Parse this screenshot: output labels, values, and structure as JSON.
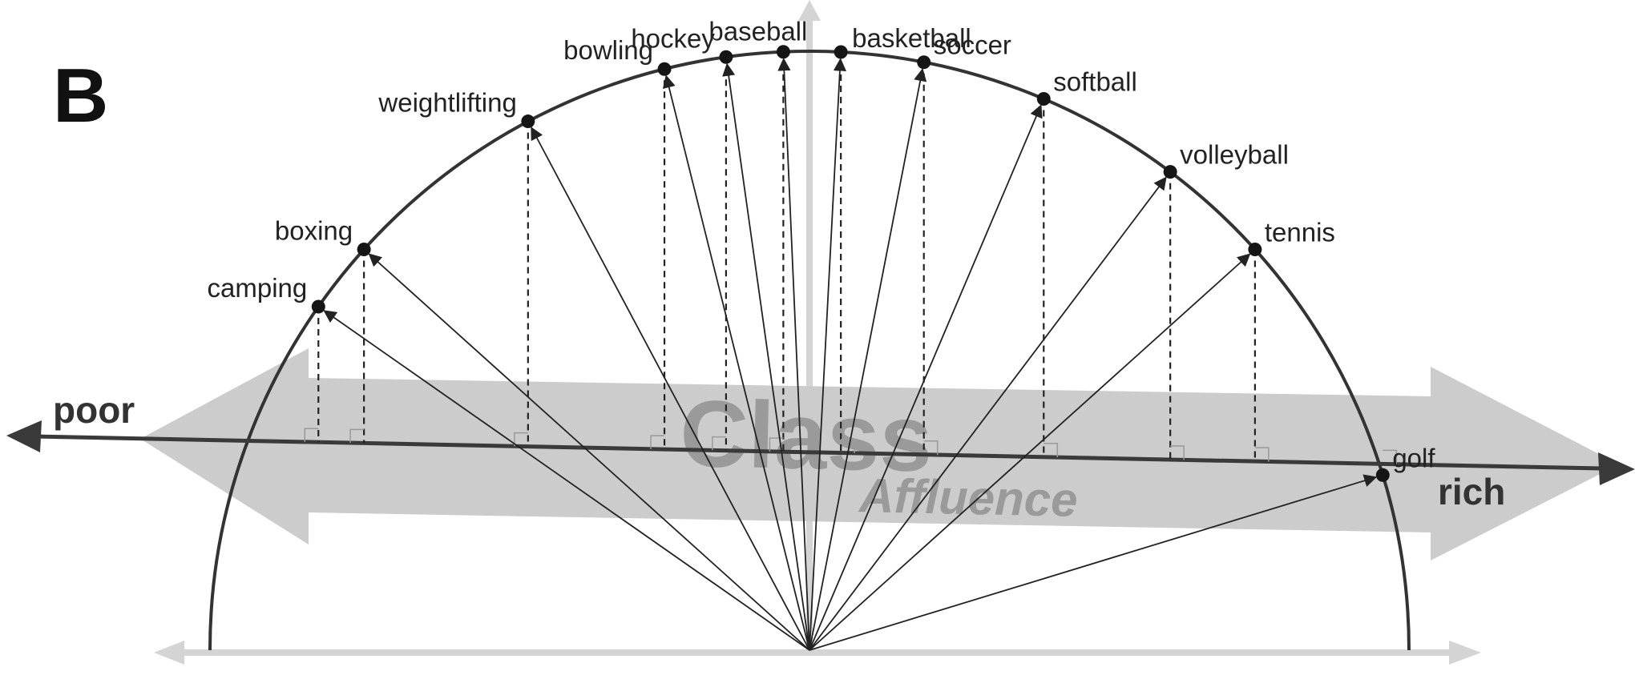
{
  "panel_label": "B",
  "axis": {
    "poor_label": "poor",
    "rich_label": "rich",
    "big_word": "Class",
    "sub_word": "Affluence"
  },
  "sports": [
    {
      "name": "camping",
      "angle_deg": 145.0
    },
    {
      "name": "boxing",
      "angle_deg": 138.0
    },
    {
      "name": "weightlifting",
      "angle_deg": 118.0
    },
    {
      "name": "bowling",
      "angle_deg": 104.0
    },
    {
      "name": "hockey",
      "angle_deg": 98.0
    },
    {
      "name": "baseball",
      "angle_deg": 92.5
    },
    {
      "name": "basketball",
      "angle_deg": 87.0
    },
    {
      "name": "soccer",
      "angle_deg": 79.0
    },
    {
      "name": "softball",
      "angle_deg": 67.0
    },
    {
      "name": "volleyball",
      "angle_deg": 53.0
    },
    {
      "name": "tennis",
      "angle_deg": 42.0
    },
    {
      "name": "golf",
      "angle_deg": 17.0
    }
  ],
  "colors": {
    "ink": "#222222",
    "arc": "#333333",
    "axis_line": "#3a3a3a",
    "class_band": "#cccccc",
    "class_text": "#9a9a9a",
    "faint_axis": "#d4d4d4"
  }
}
